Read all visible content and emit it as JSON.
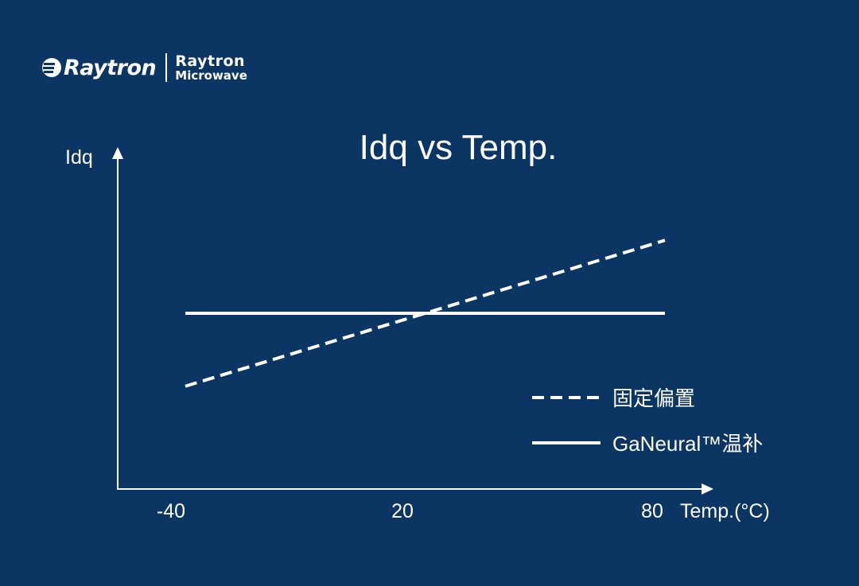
{
  "brand": {
    "logo_text": "Raytron",
    "sub_line1": "Raytron",
    "sub_line2": "Microwave"
  },
  "colors": {
    "background": "#0b3563",
    "foreground": "#ffffff"
  },
  "chart_data": {
    "type": "line",
    "title": "Idq vs Temp.",
    "ylabel": "Idq",
    "xlabel": "Temp.(°C)",
    "x_ticks": [
      "-40",
      "20",
      "80"
    ],
    "xlim": [
      -40,
      80
    ],
    "y_values_shown": false,
    "y_scale": "relative (no tick labels)",
    "ylim": [
      0,
      1
    ],
    "legend_position": "bottom-right",
    "grid": false,
    "series": [
      {
        "name": "固定偏置",
        "style": "dashed",
        "x": [
          -40,
          80
        ],
        "y": [
          0.31,
          0.75
        ]
      },
      {
        "name": "GaNeural™温补",
        "style": "solid",
        "x": [
          -40,
          80
        ],
        "y": [
          0.53,
          0.53
        ]
      }
    ]
  }
}
